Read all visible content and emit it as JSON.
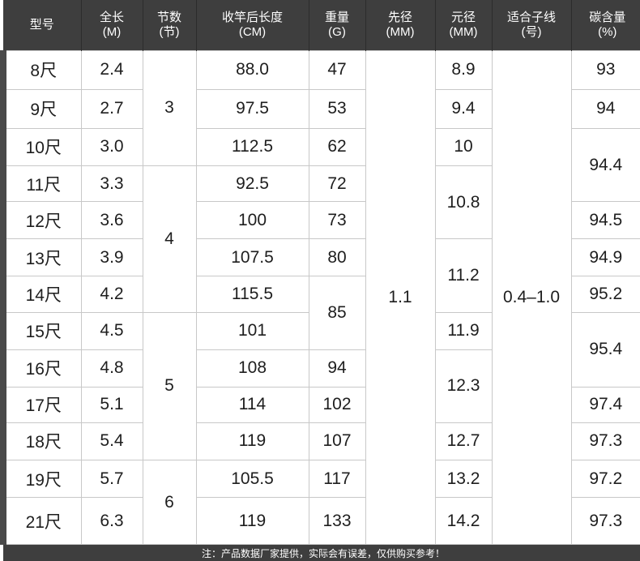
{
  "headers": [
    {
      "line1": "型号",
      "line2": ""
    },
    {
      "line1": "全长",
      "line2": "(M)"
    },
    {
      "line1": "节数",
      "line2": "(节)"
    },
    {
      "line1": "收竿后长度",
      "line2": "(CM)"
    },
    {
      "line1": "重量",
      "line2": "(G)"
    },
    {
      "line1": "先径",
      "line2": "(MM)"
    },
    {
      "line1": "元径",
      "line2": "(MM)"
    },
    {
      "line1": "适合子线",
      "line2": "(号)"
    },
    {
      "line1": "碳含量",
      "line2": "(%)"
    }
  ],
  "models": [
    "8尺",
    "9尺",
    "10尺",
    "11尺",
    "12尺",
    "13尺",
    "14尺",
    "15尺",
    "16尺",
    "17尺",
    "18尺",
    "19尺",
    "21尺"
  ],
  "lengths": [
    "2.4",
    "2.7",
    "3.0",
    "3.3",
    "3.6",
    "3.9",
    "4.2",
    "4.5",
    "4.8",
    "5.1",
    "5.4",
    "5.7",
    "6.3"
  ],
  "sections": [
    "3",
    "4",
    "5",
    "6"
  ],
  "collapsed_lengths": [
    "88.0",
    "97.5",
    "112.5",
    "92.5",
    "100",
    "107.5",
    "115.5",
    "101",
    "108",
    "114",
    "119",
    "105.5",
    "119"
  ],
  "weights": [
    "47",
    "53",
    "62",
    "72",
    "73",
    "80",
    "85",
    "94",
    "102",
    "107",
    "117",
    "133"
  ],
  "tip_diameter": "1.1",
  "butt_diameters": [
    "8.9",
    "9.4",
    "10",
    "10.8",
    "11.2",
    "11.9",
    "12.3",
    "12.7",
    "13.2",
    "14.2"
  ],
  "line_size": "0.4–1.0",
  "carbon": [
    "93",
    "94",
    "94.4",
    "94.5",
    "94.9",
    "95.2",
    "95.4",
    "97.4",
    "97.3",
    "97.2",
    "97.3"
  ],
  "footer_note": "注：产品数据厂家提供，实际会有误差，仅供购买参考！"
}
